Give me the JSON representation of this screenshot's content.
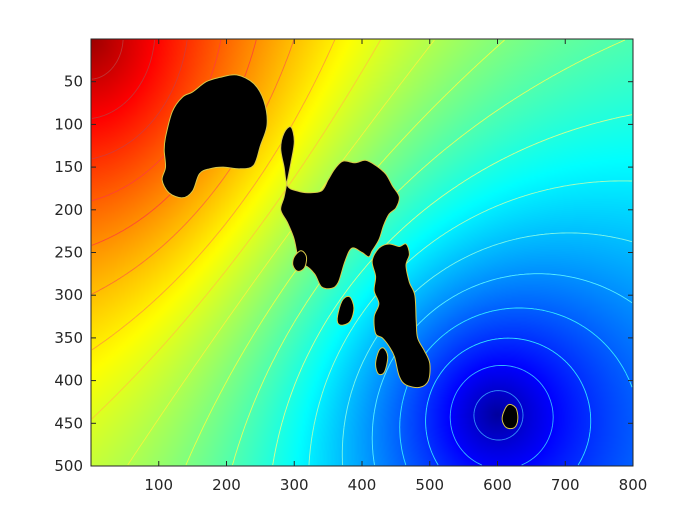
{
  "chart_data": {
    "type": "heatmap",
    "title": "",
    "xlabel": "",
    "ylabel": "",
    "xlim": [
      0,
      800
    ],
    "ylim": [
      0,
      500
    ],
    "y_reversed": true,
    "x_ticks": [
      100,
      200,
      300,
      400,
      500,
      600,
      700,
      800
    ],
    "y_ticks": [
      50,
      100,
      150,
      200,
      250,
      300,
      350,
      400,
      450,
      500
    ],
    "x_tick_labels": [
      "100",
      "200",
      "300",
      "400",
      "500",
      "600",
      "700",
      "800"
    ],
    "y_tick_labels": [
      "50",
      "100",
      "150",
      "200",
      "250",
      "300",
      "350",
      "400",
      "450",
      "500"
    ],
    "colormap": "jet",
    "field": {
      "description_of_peaks": "high values at top-left, low values at bottom-right",
      "max_point": [
        0,
        0
      ],
      "min_point": [
        600,
        440
      ],
      "value_range": [
        0,
        1
      ]
    },
    "contours": {
      "levels": [
        0.05,
        0.1,
        0.15,
        0.2,
        0.25,
        0.3,
        0.35,
        0.4,
        0.45,
        0.5,
        0.55,
        0.6,
        0.65,
        0.7,
        0.75,
        0.8,
        0.85,
        0.9,
        0.95
      ]
    },
    "obstacles": [
      {
        "name": "obstacle-1",
        "points": [
          [
            110,
            115
          ],
          [
            120,
            85
          ],
          [
            135,
            68
          ],
          [
            150,
            62
          ],
          [
            170,
            50
          ],
          [
            190,
            45
          ],
          [
            215,
            42
          ],
          [
            240,
            52
          ],
          [
            255,
            72
          ],
          [
            260,
            100
          ],
          [
            250,
            125
          ],
          [
            240,
            148
          ],
          [
            220,
            152
          ],
          [
            195,
            150
          ],
          [
            175,
            152
          ],
          [
            160,
            158
          ],
          [
            150,
            178
          ],
          [
            135,
            186
          ],
          [
            115,
            180
          ],
          [
            105,
            165
          ],
          [
            110,
            150
          ],
          [
            108,
            130
          ]
        ]
      },
      {
        "name": "obstacle-2",
        "points": [
          [
            280,
            128
          ],
          [
            285,
            110
          ],
          [
            295,
            103
          ],
          [
            300,
            120
          ],
          [
            295,
            145
          ],
          [
            290,
            165
          ],
          [
            285,
            185
          ],
          [
            280,
            200
          ],
          [
            290,
            215
          ],
          [
            300,
            235
          ],
          [
            305,
            260
          ],
          [
            300,
            268
          ],
          [
            315,
            265
          ],
          [
            330,
            275
          ],
          [
            340,
            290
          ],
          [
            355,
            292
          ],
          [
            365,
            285
          ],
          [
            375,
            260
          ],
          [
            385,
            245
          ],
          [
            400,
            250
          ],
          [
            410,
            255
          ],
          [
            415,
            248
          ],
          [
            425,
            235
          ],
          [
            432,
            218
          ],
          [
            440,
            205
          ],
          [
            450,
            198
          ],
          [
            455,
            185
          ],
          [
            445,
            172
          ],
          [
            435,
            158
          ],
          [
            420,
            148
          ],
          [
            405,
            142
          ],
          [
            390,
            145
          ],
          [
            372,
            143
          ],
          [
            360,
            152
          ],
          [
            350,
            165
          ],
          [
            340,
            178
          ],
          [
            320,
            180
          ],
          [
            305,
            178
          ],
          [
            290,
            172
          ],
          [
            285,
            150
          ]
        ]
      },
      {
        "name": "obstacle-3",
        "points": [
          [
            415,
            260
          ],
          [
            425,
            245
          ],
          [
            440,
            240
          ],
          [
            455,
            243
          ],
          [
            465,
            240
          ],
          [
            470,
            252
          ],
          [
            465,
            265
          ],
          [
            470,
            285
          ],
          [
            478,
            300
          ],
          [
            480,
            330
          ],
          [
            482,
            350
          ],
          [
            492,
            365
          ],
          [
            500,
            380
          ],
          [
            498,
            400
          ],
          [
            485,
            408
          ],
          [
            465,
            405
          ],
          [
            455,
            395
          ],
          [
            448,
            372
          ],
          [
            440,
            360
          ],
          [
            430,
            350
          ],
          [
            420,
            345
          ],
          [
            418,
            325
          ],
          [
            425,
            310
          ],
          [
            418,
            295
          ],
          [
            420,
            278
          ]
        ]
      },
      {
        "name": "obstacle-4",
        "points": [
          [
            365,
            320
          ],
          [
            372,
            305
          ],
          [
            382,
            302
          ],
          [
            388,
            315
          ],
          [
            383,
            330
          ],
          [
            372,
            335
          ],
          [
            364,
            332
          ]
        ]
      },
      {
        "name": "obstacle-5",
        "points": [
          [
            300,
            255
          ],
          [
            310,
            248
          ],
          [
            318,
            255
          ],
          [
            315,
            268
          ],
          [
            305,
            272
          ],
          [
            298,
            265
          ]
        ]
      },
      {
        "name": "obstacle-6",
        "points": [
          [
            420,
            380
          ],
          [
            425,
            365
          ],
          [
            432,
            362
          ],
          [
            438,
            372
          ],
          [
            433,
            390
          ],
          [
            424,
            392
          ]
        ]
      },
      {
        "name": "obstacle-7",
        "points": [
          [
            610,
            435
          ],
          [
            617,
            428
          ],
          [
            627,
            432
          ],
          [
            630,
            445
          ],
          [
            625,
            455
          ],
          [
            613,
            455
          ],
          [
            607,
            446
          ]
        ]
      }
    ]
  }
}
